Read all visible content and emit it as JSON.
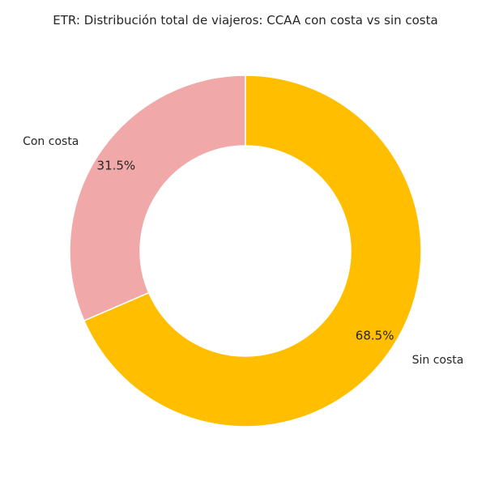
{
  "chart_data": {
    "type": "pie",
    "variant": "donut",
    "title": "ETR: Distribución total de viajeros: CCAA con costa vs sin costa",
    "categories": [
      "Con costa",
      "Sin costa"
    ],
    "values": [
      31.5,
      68.5
    ],
    "percent_labels": [
      "31.5%",
      "68.5%"
    ],
    "colors": [
      "#F0A8A8",
      "#FFBF00"
    ],
    "slice_border_color": "#FFFFFF",
    "legend": "none"
  }
}
